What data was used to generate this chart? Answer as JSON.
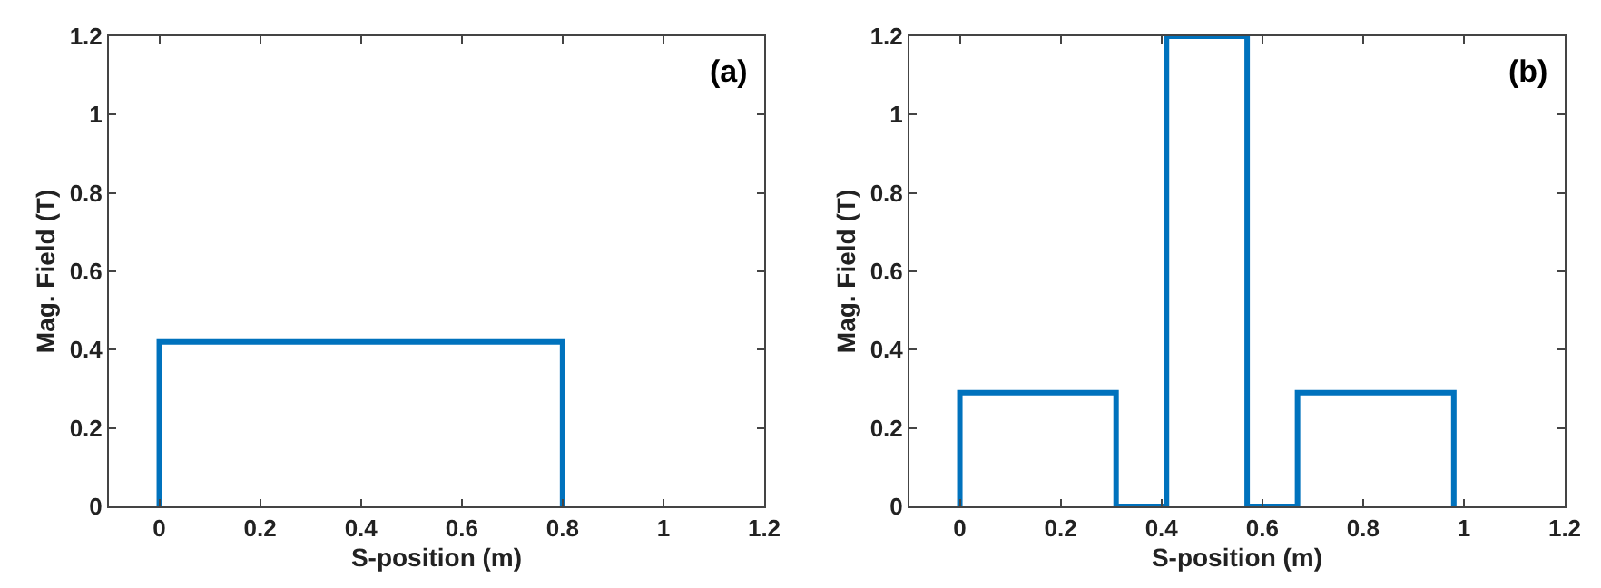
{
  "chart_data": [
    {
      "type": "step",
      "xlabel": "S-position (m)",
      "ylabel": "Mag. Field (T)",
      "annotations": [
        "(a)"
      ],
      "series": [
        {
          "color": "#0072bd",
          "x": [
            0,
            0,
            0.8
          ],
          "values": [
            0,
            0.42,
            0
          ]
        }
      ],
      "xlim": [
        -0.1,
        1.2
      ],
      "xticks": [
        0,
        0.2,
        0.4,
        0.6,
        0.8,
        1,
        1.2
      ],
      "ylim": [
        0,
        1.2
      ],
      "yticks": [
        0,
        0.2,
        0.4,
        0.6,
        0.8,
        1,
        1.2
      ]
    },
    {
      "type": "step",
      "xlabel": "S-position (m)",
      "ylabel": "Mag. Field (T)",
      "annotations": [
        "(b)"
      ],
      "series": [
        {
          "color": "#0072bd",
          "x": [
            0,
            0,
            0.31,
            0.41,
            0.57,
            0.67,
            0.98
          ],
          "values": [
            0,
            0.29,
            0,
            1.2,
            0,
            0.29,
            0
          ]
        }
      ],
      "xlim": [
        -0.1,
        1.2
      ],
      "xticks": [
        0,
        0.2,
        0.4,
        0.6,
        0.8,
        1,
        1.2
      ],
      "ylim": [
        0,
        1.2
      ],
      "yticks": [
        0,
        0.2,
        0.4,
        0.6,
        0.8,
        1,
        1.2
      ]
    }
  ]
}
